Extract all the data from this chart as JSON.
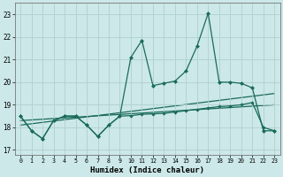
{
  "xlabel": "Humidex (Indice chaleur)",
  "background_color": "#cce8e8",
  "grid_color": "#b0d0d0",
  "line_color": "#1a6b5a",
  "xlim": [
    -0.5,
    23.5
  ],
  "ylim": [
    16.8,
    23.5
  ],
  "yticks": [
    17,
    18,
    19,
    20,
    21,
    22,
    23
  ],
  "xticks": [
    0,
    1,
    2,
    3,
    4,
    5,
    6,
    7,
    8,
    9,
    10,
    11,
    12,
    13,
    14,
    15,
    16,
    17,
    18,
    19,
    20,
    21,
    22,
    23
  ],
  "line1_x": [
    0,
    1,
    2,
    3,
    4,
    5,
    6,
    7,
    8,
    9,
    10,
    11,
    12,
    13,
    14,
    15,
    16,
    17,
    18,
    19,
    20,
    21,
    22,
    23
  ],
  "line1_y": [
    18.5,
    17.85,
    17.5,
    18.3,
    18.5,
    18.5,
    18.1,
    17.6,
    18.1,
    18.5,
    21.1,
    21.85,
    19.85,
    19.95,
    20.05,
    20.5,
    21.6,
    23.05,
    20.0,
    20.0,
    19.95,
    19.75,
    17.85,
    17.85
  ],
  "line2_x": [
    0,
    1,
    2,
    3,
    4,
    5,
    6,
    7,
    8,
    9,
    10,
    11,
    12,
    13,
    14,
    15,
    16,
    17,
    18,
    19,
    20,
    21,
    22,
    23
  ],
  "line2_y": [
    18.5,
    17.85,
    17.5,
    18.3,
    18.5,
    18.5,
    18.1,
    17.6,
    18.1,
    18.5,
    18.52,
    18.58,
    18.6,
    18.62,
    18.68,
    18.74,
    18.8,
    18.86,
    18.92,
    18.95,
    19.0,
    19.1,
    18.0,
    17.85
  ],
  "line3_x": [
    0,
    23
  ],
  "line3_y": [
    18.1,
    19.5
  ],
  "line4_x": [
    0,
    23
  ],
  "line4_y": [
    18.3,
    19.0
  ]
}
